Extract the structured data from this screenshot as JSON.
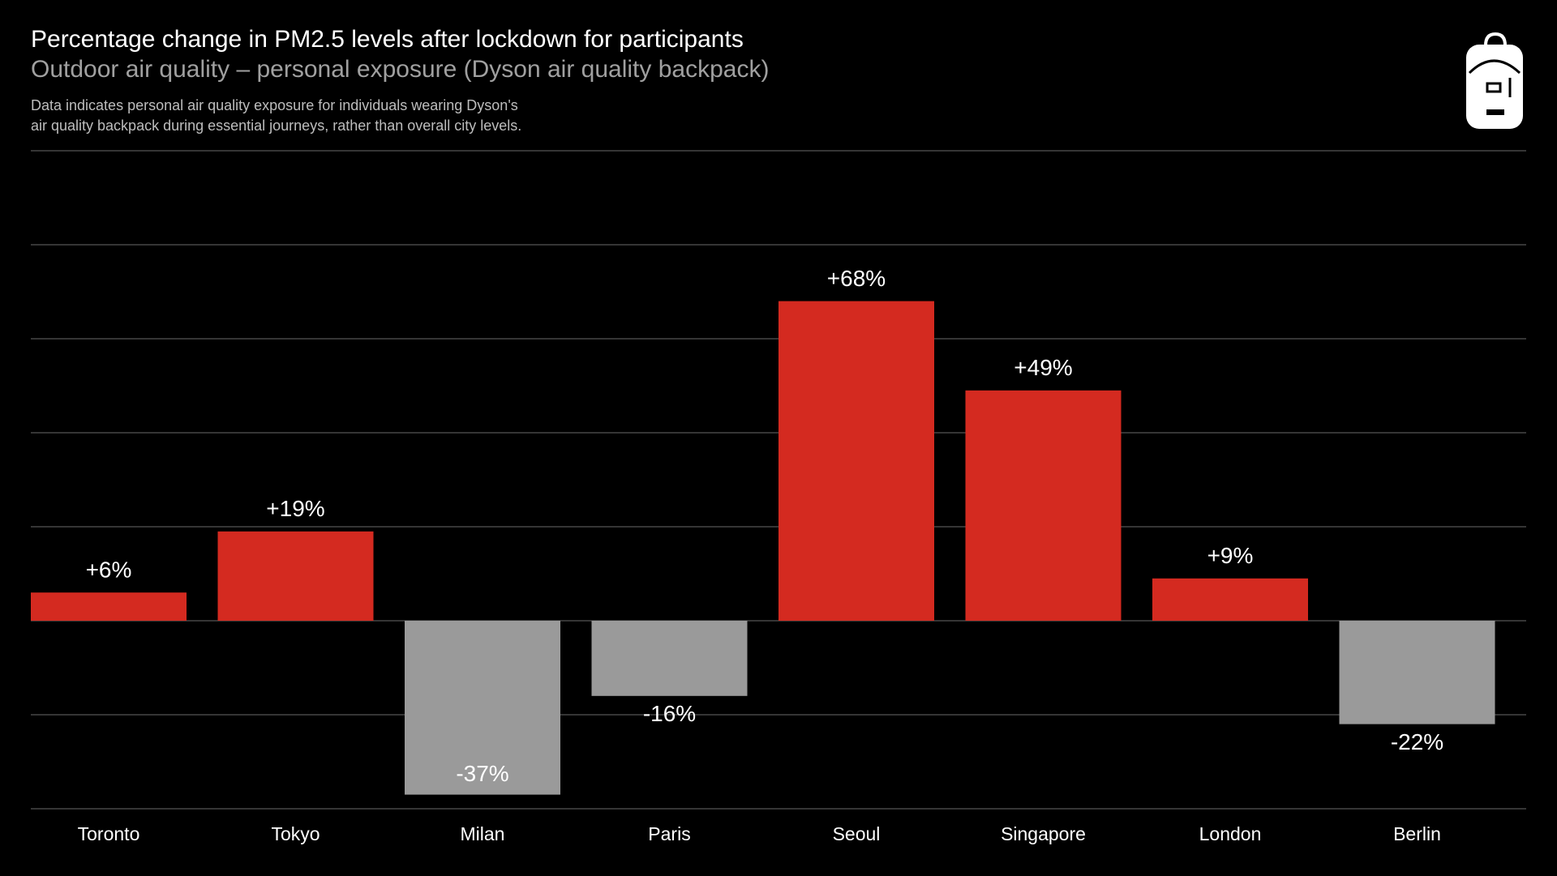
{
  "chart_data": {
    "type": "bar",
    "title": "Percentage change in PM2.5 levels after lockdown for participants",
    "subtitle": "Outdoor air quality – personal exposure (Dyson air quality backpack)",
    "note": [
      "Data indicates personal air quality exposure for individuals wearing Dyson's",
      "air quality backpack during essential journeys, rather than overall city levels."
    ],
    "categories": [
      "Toronto",
      "Tokyo",
      "Milan",
      "Paris",
      "Seoul",
      "Singapore",
      "London",
      "Berlin"
    ],
    "values": [
      6,
      19,
      -37,
      -16,
      68,
      49,
      9,
      -22
    ],
    "value_labels": [
      "+6%",
      "+19%",
      "-37%",
      "-16%",
      "+68%",
      "+49%",
      "+9%",
      "-22%"
    ],
    "positive_color": "#d42a20",
    "negative_color": "#9a9a9a",
    "ylim": [
      -40,
      100
    ],
    "yticks": [
      -40,
      -20,
      0,
      20,
      40,
      60,
      80,
      100
    ],
    "grid": true
  }
}
